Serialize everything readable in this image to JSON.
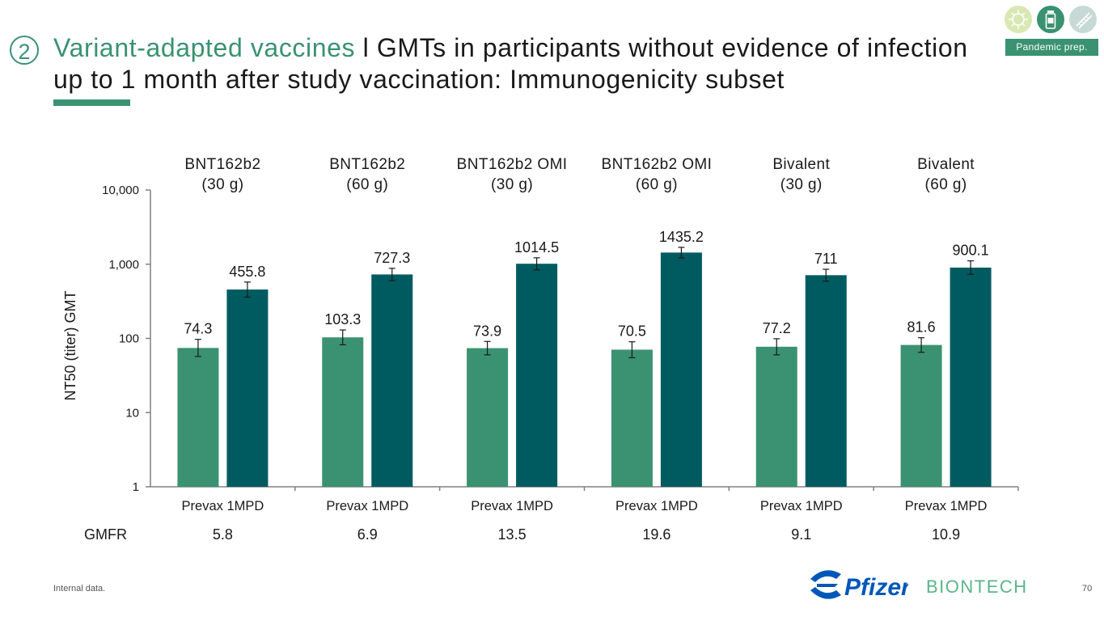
{
  "header": {
    "section_number": "2",
    "title_accent": "Variant-adapted vaccines",
    "title_rest": " l GMTs in participants without evidence of infection up to 1 month after study vaccination: Immunogenicity subset",
    "badge": "Pandemic prep.",
    "icons": [
      "virus-icon",
      "vaccine-vial-icon",
      "dna-icon"
    ],
    "accent_color": "#3a9272"
  },
  "chart_data": {
    "type": "bar",
    "scale": "log",
    "ylabel": "NT50 (titer) GMT",
    "ylim": [
      1,
      10000
    ],
    "yticks": [
      1,
      10,
      100,
      1000,
      10000
    ],
    "ytick_labels": [
      "1",
      "10",
      "100",
      "1,000",
      "10,000"
    ],
    "groups": [
      {
        "line1": "BNT162b2",
        "line2": "(30 g)",
        "x_label": "Prevax 1MPD",
        "gmfr": "5.8",
        "bars": [
          {
            "value": 74.3,
            "label": "74.3",
            "ci": [
              57,
              97
            ],
            "color": "#3a9272"
          },
          {
            "value": 455.8,
            "label": "455.8",
            "ci": [
              360,
              575
            ],
            "color": "#005b60"
          }
        ]
      },
      {
        "line1": "BNT162b2",
        "line2": "(60 g)",
        "x_label": "Prevax 1MPD",
        "gmfr": "6.9",
        "bars": [
          {
            "value": 103.3,
            "label": "103.3",
            "ci": [
              82,
              130
            ],
            "color": "#3a9272"
          },
          {
            "value": 727.3,
            "label": "727.3",
            "ci": [
              600,
              880
            ],
            "color": "#005b60"
          }
        ]
      },
      {
        "line1": "BNT162b2 OMI",
        "line2": "(30 g)",
        "x_label": "Prevax 1MPD",
        "gmfr": "13.5",
        "bars": [
          {
            "value": 73.9,
            "label": "73.9",
            "ci": [
              60,
              91
            ],
            "color": "#3a9272"
          },
          {
            "value": 1014.5,
            "label": "1014.5",
            "ci": [
              840,
              1220
            ],
            "color": "#005b60"
          }
        ]
      },
      {
        "line1": "BNT162b2 OMI",
        "line2": "(60 g)",
        "x_label": "Prevax 1MPD",
        "gmfr": "19.6",
        "bars": [
          {
            "value": 70.5,
            "label": "70.5",
            "ci": [
              55,
              90
            ],
            "color": "#3a9272"
          },
          {
            "value": 1435.2,
            "label": "1435.2",
            "ci": [
              1220,
              1690
            ],
            "color": "#005b60"
          }
        ]
      },
      {
        "line1": "Bivalent",
        "line2": "(30 g)",
        "x_label": "Prevax 1MPD",
        "gmfr": "9.1",
        "bars": [
          {
            "value": 77.2,
            "label": "77.2",
            "ci": [
              60,
              99
            ],
            "color": "#3a9272"
          },
          {
            "value": 711,
            "label": "711",
            "ci": [
              590,
              855
            ],
            "color": "#005b60"
          }
        ]
      },
      {
        "line1": "Bivalent",
        "line2": "(60 g)",
        "x_label": "Prevax 1MPD",
        "gmfr": "10.9",
        "bars": [
          {
            "value": 81.6,
            "label": "81.6",
            "ci": [
              65,
              102
            ],
            "color": "#3a9272"
          },
          {
            "value": 900.1,
            "label": "900.1",
            "ci": [
              730,
              1110
            ],
            "color": "#005b60"
          }
        ]
      }
    ],
    "gmfr_label": "GMFR",
    "grid": false
  },
  "footer": {
    "footnote": "Internal data.",
    "page_number": "70",
    "logo_pfizer": "Pfizer",
    "logo_biontech": "BIONTECH",
    "pfizer_color": "#0057b8",
    "biontech_color": "#5ab58a"
  }
}
